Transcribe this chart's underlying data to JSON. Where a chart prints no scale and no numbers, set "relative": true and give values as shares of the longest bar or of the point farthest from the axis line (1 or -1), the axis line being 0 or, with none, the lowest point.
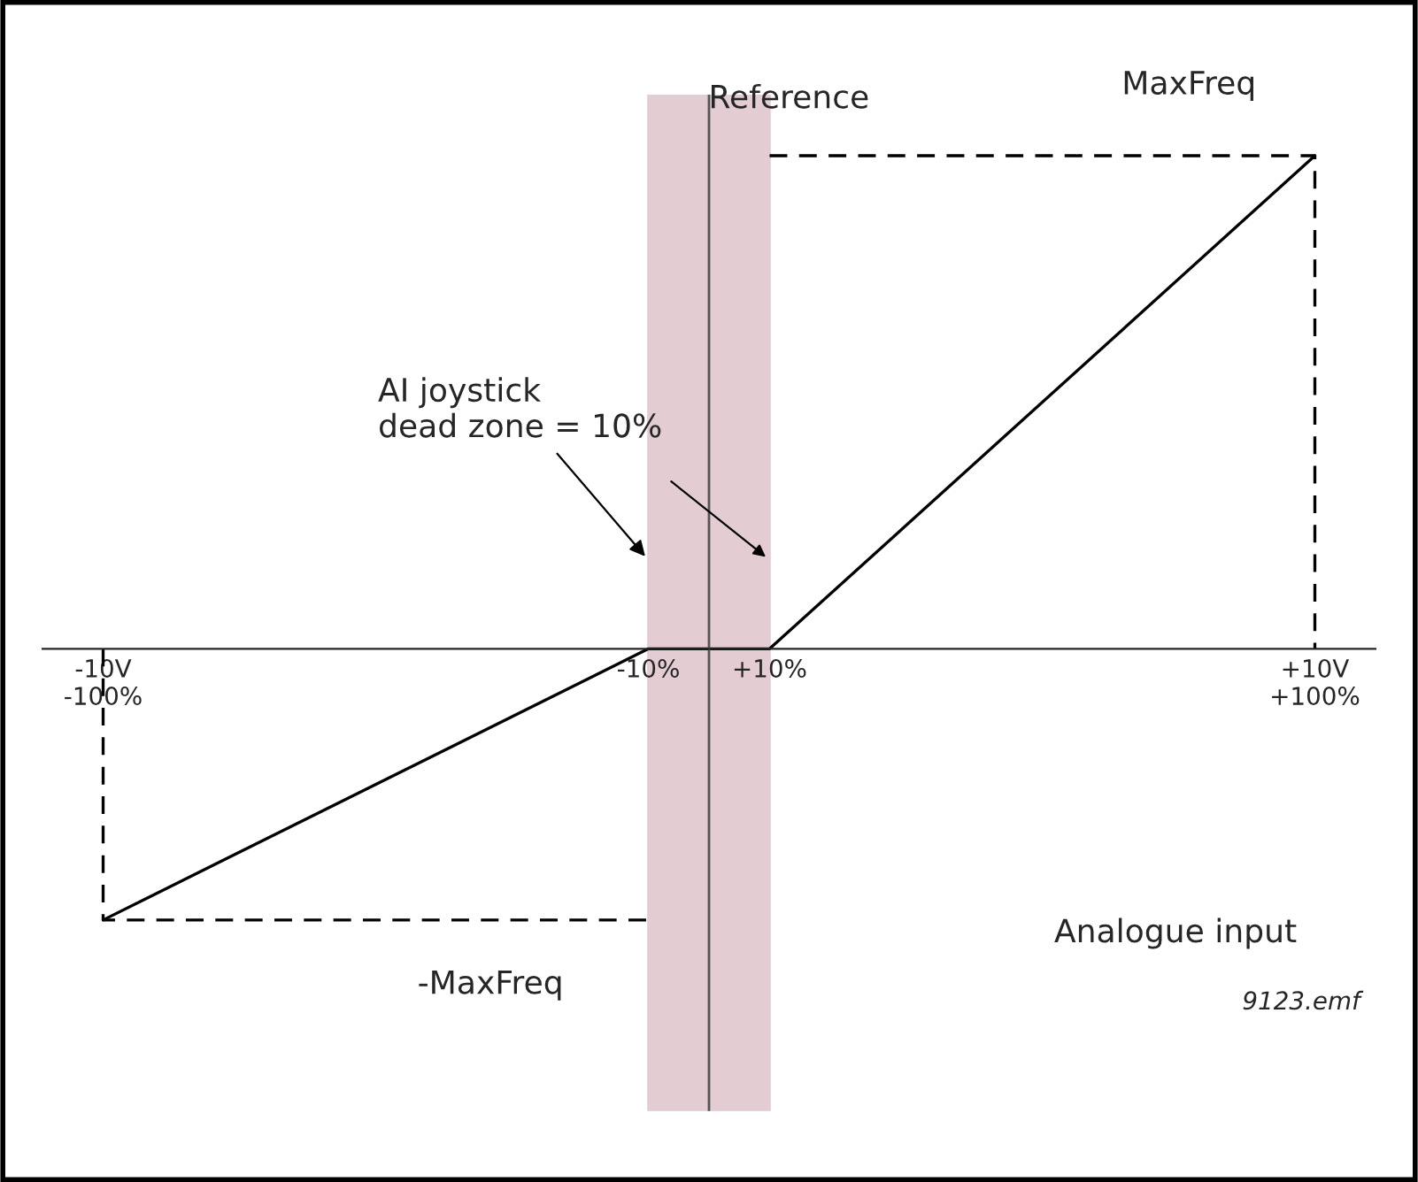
{
  "chart_data": {
    "type": "line",
    "relative": true,
    "xlabel": "Analogue input",
    "ylabel": "Reference",
    "xlim": [
      -110,
      110
    ],
    "xticks": [
      {
        "value": -100,
        "label": "-10V\n-100%"
      },
      {
        "value": -10,
        "label": "-10%"
      },
      {
        "value": 10,
        "label": "+10%"
      },
      {
        "value": 100,
        "label": "+10V\n+100%"
      }
    ],
    "series": [
      {
        "x": [
          -100,
          -10,
          10,
          100
        ],
        "values": [
          -0.55,
          0,
          0,
          1
        ],
        "color": "#000000",
        "line_style": "solid"
      },
      {
        "x": [
          -100,
          -100,
          -10
        ],
        "values": [
          0,
          -0.55,
          -0.55
        ],
        "color": "#000000",
        "line_style": "dashed"
      },
      {
        "x": [
          10,
          100,
          100
        ],
        "values": [
          1,
          1,
          0
        ],
        "color": "#000000",
        "line_style": "dashed"
      }
    ],
    "bands": [
      {
        "axis": "x",
        "from": -10,
        "to": 10,
        "color": "#e3cdd3"
      }
    ],
    "annotations": [
      {
        "text": "MaxFreq",
        "x": 60,
        "y": 1
      },
      {
        "text": "-MaxFreq",
        "x": -40,
        "y": -0.55
      },
      {
        "text": "AI joystick\ndead zone = 10%",
        "x": -10,
        "y": 0.18
      },
      "9123.emf"
    ],
    "grid": false,
    "marker": "none"
  }
}
